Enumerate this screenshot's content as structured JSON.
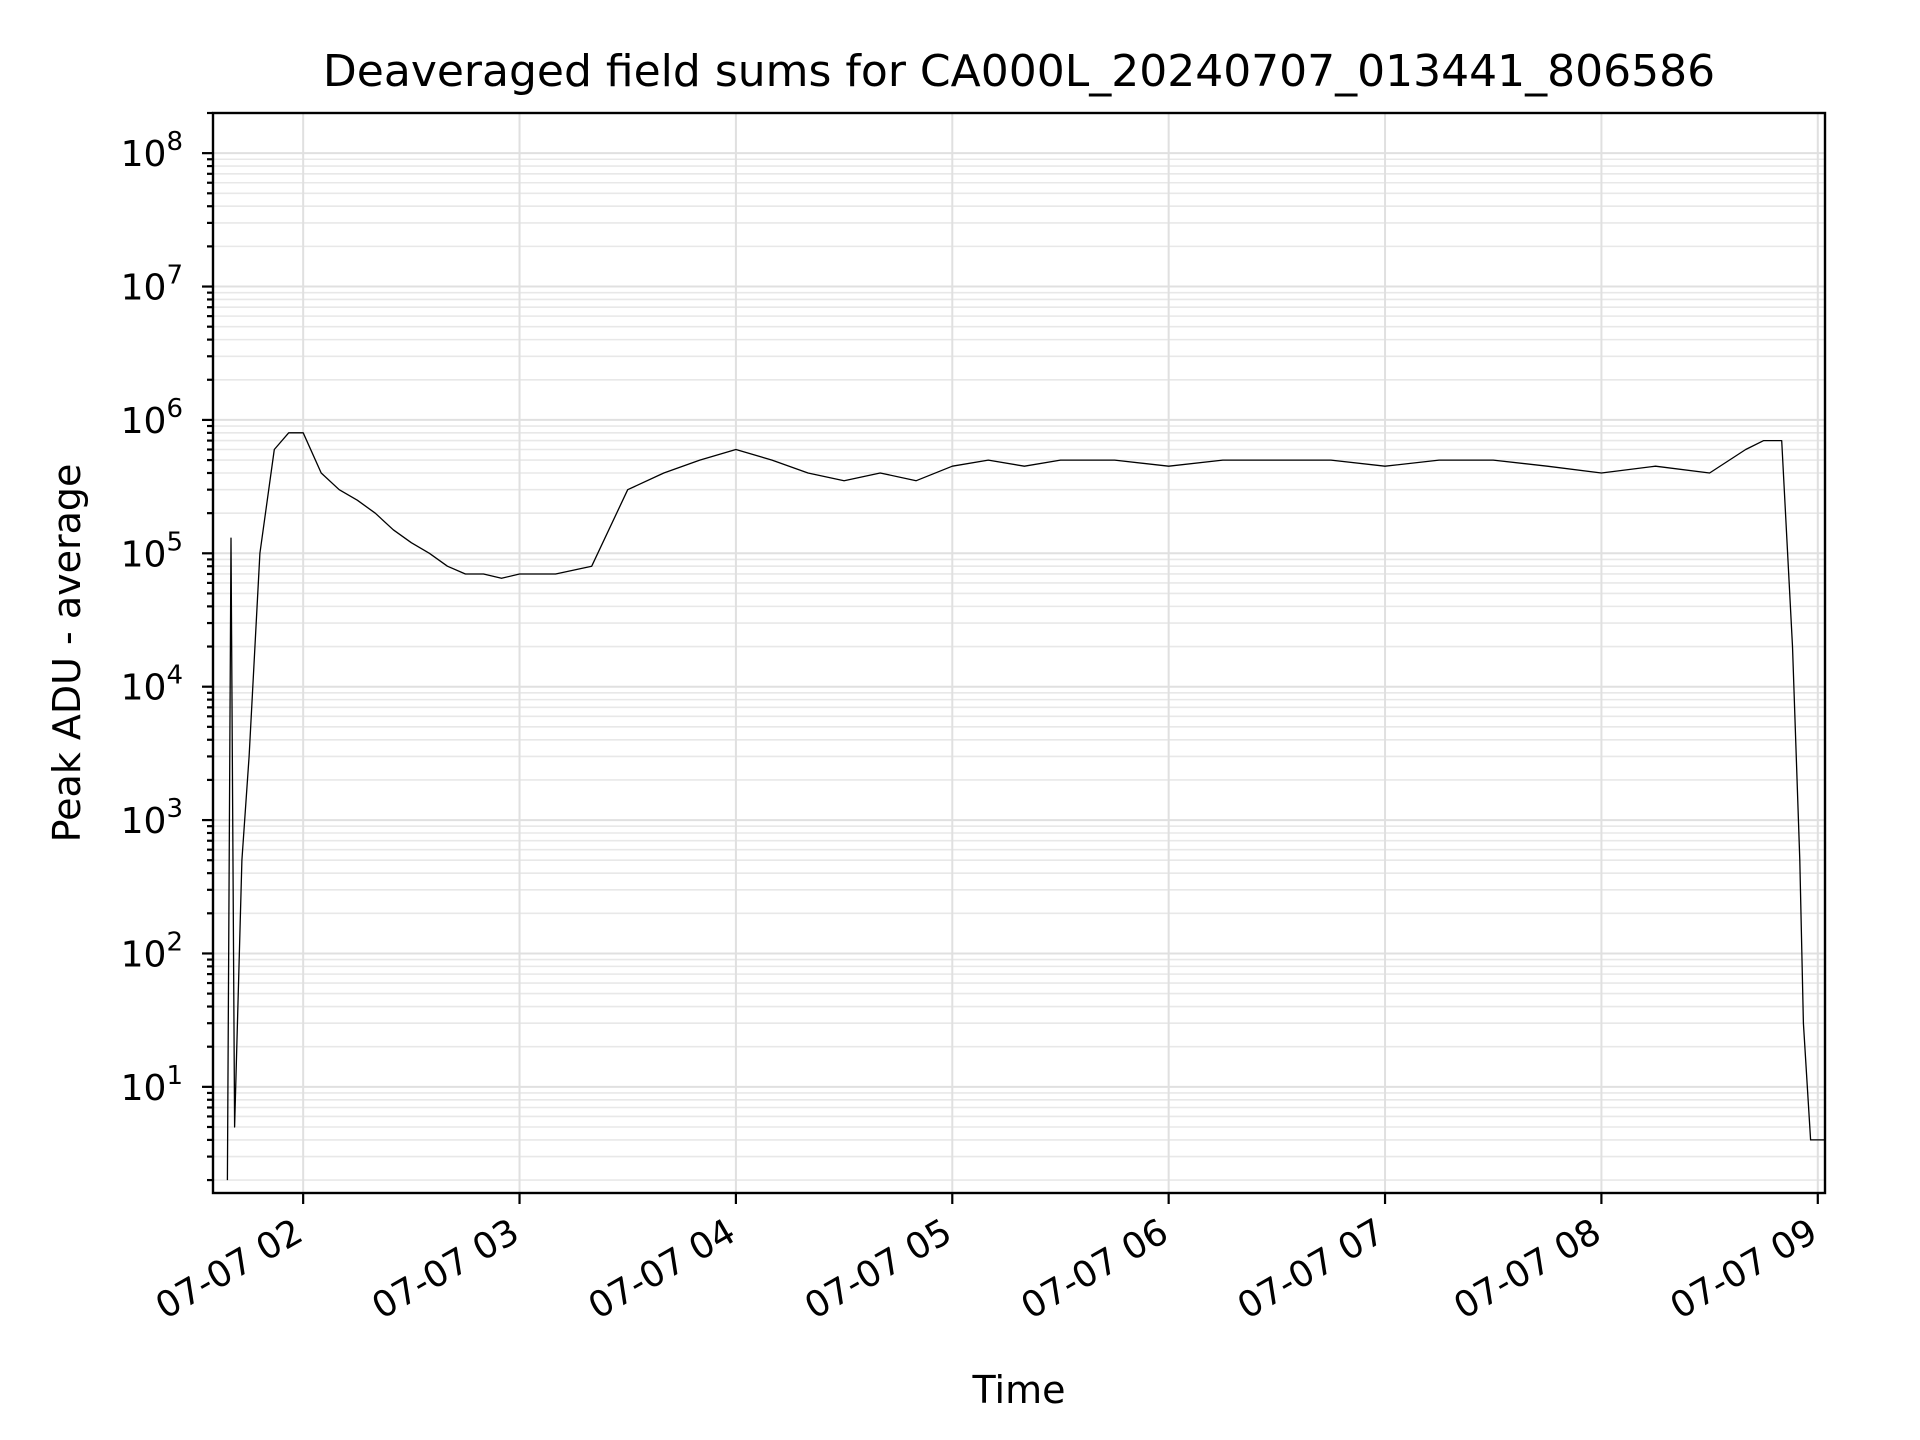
{
  "chart_data": {
    "type": "line",
    "title": "Deaveraged field sums for CA000L_20240707_013441_806586",
    "xlabel": "Time",
    "ylabel": "Peak ADU - average",
    "yscale": "log",
    "ylim": [
      1.6,
      200000000
    ],
    "xlim": [
      "2024-07-07 01:35",
      "2024-07-07 09:02"
    ],
    "grid": "major and minor",
    "x_tick_labels": [
      "07-07 02",
      "07-07 03",
      "07-07 04",
      "07-07 05",
      "07-07 06",
      "07-07 07",
      "07-07 08",
      "07-07 09"
    ],
    "x_ticks": [
      "2024-07-07 02:00",
      "2024-07-07 03:00",
      "2024-07-07 04:00",
      "2024-07-07 05:00",
      "2024-07-07 06:00",
      "2024-07-07 07:00",
      "2024-07-07 08:00",
      "2024-07-07 09:00"
    ],
    "y_ticks": [
      {
        "value": 10,
        "base": "10",
        "exp": "1"
      },
      {
        "value": 100,
        "base": "10",
        "exp": "2"
      },
      {
        "value": 1000,
        "base": "10",
        "exp": "3"
      },
      {
        "value": 10000,
        "base": "10",
        "exp": "4"
      },
      {
        "value": 100000,
        "base": "10",
        "exp": "5"
      },
      {
        "value": 1000000,
        "base": "10",
        "exp": "6"
      },
      {
        "value": 10000000,
        "base": "10",
        "exp": "7"
      },
      {
        "value": 100000000,
        "base": "10",
        "exp": "8"
      }
    ],
    "series": [
      {
        "color": "#000000",
        "x": [
          "2024-07-07 01:39",
          "2024-07-07 01:40",
          "2024-07-07 01:41",
          "2024-07-07 01:43",
          "2024-07-07 01:45",
          "2024-07-07 01:48",
          "2024-07-07 01:52",
          "2024-07-07 01:56",
          "2024-07-07 02:00",
          "2024-07-07 02:05",
          "2024-07-07 02:10",
          "2024-07-07 02:15",
          "2024-07-07 02:20",
          "2024-07-07 02:25",
          "2024-07-07 02:30",
          "2024-07-07 02:35",
          "2024-07-07 02:40",
          "2024-07-07 02:45",
          "2024-07-07 02:50",
          "2024-07-07 02:55",
          "2024-07-07 03:00",
          "2024-07-07 03:10",
          "2024-07-07 03:20",
          "2024-07-07 03:30",
          "2024-07-07 03:40",
          "2024-07-07 03:50",
          "2024-07-07 04:00",
          "2024-07-07 04:10",
          "2024-07-07 04:20",
          "2024-07-07 04:30",
          "2024-07-07 04:40",
          "2024-07-07 04:50",
          "2024-07-07 05:00",
          "2024-07-07 05:10",
          "2024-07-07 05:20",
          "2024-07-07 05:30",
          "2024-07-07 05:45",
          "2024-07-07 06:00",
          "2024-07-07 06:15",
          "2024-07-07 06:30",
          "2024-07-07 06:45",
          "2024-07-07 07:00",
          "2024-07-07 07:15",
          "2024-07-07 07:30",
          "2024-07-07 07:45",
          "2024-07-07 08:00",
          "2024-07-07 08:15",
          "2024-07-07 08:30",
          "2024-07-07 08:40",
          "2024-07-07 08:45",
          "2024-07-07 08:50",
          "2024-07-07 08:53",
          "2024-07-07 08:55",
          "2024-07-07 08:56",
          "2024-07-07 08:58",
          "2024-07-07 09:02"
        ],
        "y": [
          2,
          130000,
          5,
          500,
          3000,
          100000,
          600000,
          800000,
          800000,
          400000,
          300000,
          250000,
          200000,
          150000,
          120000,
          100000,
          80000,
          70000,
          70000,
          65000,
          70000,
          70000,
          80000,
          300000,
          400000,
          500000,
          600000,
          500000,
          400000,
          350000,
          400000,
          350000,
          450000,
          500000,
          450000,
          500000,
          500000,
          450000,
          500000,
          500000,
          500000,
          450000,
          500000,
          500000,
          450000,
          400000,
          450000,
          400000,
          600000,
          700000,
          700000,
          20000,
          500,
          30,
          4,
          4
        ]
      }
    ]
  }
}
